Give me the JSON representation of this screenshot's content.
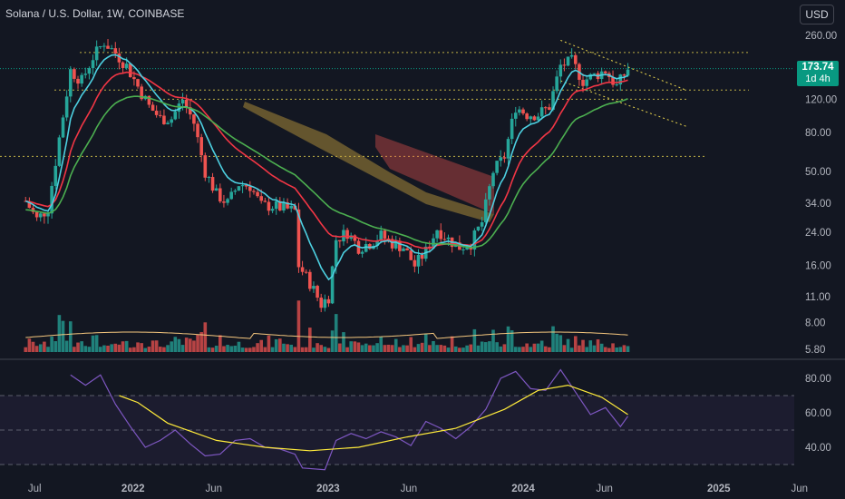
{
  "header": {
    "title": "Solana / U.S. Dollar, 1W, COINBASE",
    "currency_button": "USD"
  },
  "price_badge": {
    "price": "173.74",
    "countdown": "1d 4h",
    "color": "#089981"
  },
  "colors": {
    "background": "#131722",
    "up": "#26a69a",
    "down": "#ef5350",
    "rsi_line": "#7e57c2",
    "rsi_ma": "#ffeb3b",
    "ema_fast": "#4dd0e1",
    "ema_slow": "#f23645",
    "ema_long": "#4caf50"
  },
  "chart_data": [
    {
      "type": "candlestick",
      "title": "Solana / U.S. Dollar, 1W, COINBASE",
      "y_scale": "log",
      "ylim": [
        5.8,
        300
      ],
      "y_ticks": [
        "260.00",
        "120.00",
        "80.00",
        "50.00",
        "34.00",
        "24.00",
        "16.00",
        "11.00",
        "8.00",
        "5.80"
      ],
      "x_ticks": [
        "Jul",
        "2022",
        "Jun",
        "2023",
        "Jun",
        "2024",
        "Jun",
        "2025",
        "Jun"
      ],
      "x_range": [
        "2021-05",
        "2025-06"
      ],
      "current_price": 173.74,
      "price_path": [
        [
          "2021-06-14",
          35
        ],
        [
          "2021-07-05",
          28
        ],
        [
          "2021-07-26",
          32
        ],
        [
          "2021-08-16",
          75
        ],
        [
          "2021-09-06",
          170
        ],
        [
          "2021-09-27",
          150
        ],
        [
          "2021-10-18",
          200
        ],
        [
          "2021-11-08",
          240
        ],
        [
          "2021-11-29",
          210
        ],
        [
          "2021-12-20",
          180
        ],
        [
          "2022-01-10",
          140
        ],
        [
          "2022-01-31",
          110
        ],
        [
          "2022-02-21",
          95
        ],
        [
          "2022-03-14",
          95
        ],
        [
          "2022-04-04",
          120
        ],
        [
          "2022-04-25",
          90
        ],
        [
          "2022-05-16",
          50
        ],
        [
          "2022-06-06",
          38
        ],
        [
          "2022-06-27",
          34
        ],
        [
          "2022-07-18",
          43
        ],
        [
          "2022-08-08",
          42
        ],
        [
          "2022-08-29",
          33
        ],
        [
          "2022-09-19",
          33
        ],
        [
          "2022-10-10",
          32
        ],
        [
          "2022-10-31",
          31
        ],
        [
          "2022-11-07",
          16
        ],
        [
          "2022-11-28",
          13
        ],
        [
          "2022-12-19",
          10
        ],
        [
          "2023-01-02",
          11
        ],
        [
          "2023-01-16",
          22
        ],
        [
          "2023-02-06",
          24
        ],
        [
          "2023-02-27",
          20
        ],
        [
          "2023-03-20",
          21
        ],
        [
          "2023-04-10",
          23
        ],
        [
          "2023-05-01",
          21
        ],
        [
          "2023-05-22",
          20
        ],
        [
          "2023-06-12",
          16
        ],
        [
          "2023-07-03",
          19
        ],
        [
          "2023-07-24",
          25
        ],
        [
          "2023-08-14",
          22
        ],
        [
          "2023-09-04",
          20
        ],
        [
          "2023-09-25",
          21
        ],
        [
          "2023-10-16",
          27
        ],
        [
          "2023-11-06",
          50
        ],
        [
          "2023-11-27",
          60
        ],
        [
          "2023-12-18",
          110
        ],
        [
          "2024-01-08",
          100
        ],
        [
          "2024-01-29",
          100
        ],
        [
          "2024-02-19",
          110
        ],
        [
          "2024-03-11",
          180
        ],
        [
          "2024-04-01",
          190
        ],
        [
          "2024-04-22",
          150
        ],
        [
          "2024-05-13",
          160
        ],
        [
          "2024-06-03",
          170
        ],
        [
          "2024-06-24",
          140
        ],
        [
          "2024-07-15",
          173.74
        ]
      ],
      "annotations": [
        "ATH ~260",
        "descending wedge trendlines",
        "EMA ribbons"
      ]
    },
    {
      "type": "line",
      "title": "RSI",
      "y_ticks": [
        "80.00",
        "60.00",
        "40.00"
      ],
      "ylim": [
        25,
        90
      ],
      "bands": [
        70,
        50,
        30
      ],
      "series": [
        {
          "values": [
            [
              "2021-09-06",
              82
            ],
            [
              "2021-10-04",
              76
            ],
            [
              "2021-11-01",
              82
            ],
            [
              "2021-11-29",
              65
            ],
            [
              "2021-12-27",
              52
            ],
            [
              "2022-01-24",
              40
            ],
            [
              "2022-02-21",
              44
            ],
            [
              "2022-03-21",
              50
            ],
            [
              "2022-04-18",
              42
            ],
            [
              "2022-05-16",
              35
            ],
            [
              "2022-06-13",
              36
            ],
            [
              "2022-07-11",
              44
            ],
            [
              "2022-08-08",
              45
            ],
            [
              "2022-09-05",
              40
            ],
            [
              "2022-10-03",
              39
            ],
            [
              "2022-10-31",
              36
            ],
            [
              "2022-11-14",
              28
            ],
            [
              "2022-12-26",
              27
            ],
            [
              "2023-01-16",
              44
            ],
            [
              "2023-02-13",
              48
            ],
            [
              "2023-03-13",
              45
            ],
            [
              "2023-04-10",
              49
            ],
            [
              "2023-05-08",
              46
            ],
            [
              "2023-06-05",
              41
            ],
            [
              "2023-07-03",
              55
            ],
            [
              "2023-07-31",
              51
            ],
            [
              "2023-08-28",
              45
            ],
            [
              "2023-09-25",
              52
            ],
            [
              "2023-10-23",
              62
            ],
            [
              "2023-11-20",
              80
            ],
            [
              "2023-12-18",
              84
            ],
            [
              "2024-01-15",
              74
            ],
            [
              "2024-02-12",
              73
            ],
            [
              "2024-03-11",
              85
            ],
            [
              "2024-04-08",
              72
            ],
            [
              "2024-05-06",
              59
            ],
            [
              "2024-06-03",
              63
            ],
            [
              "2024-07-01",
              52
            ],
            [
              "2024-07-15",
              58
            ]
          ]
        },
        {
          "values": [
            [
              "2021-12-06",
              70
            ],
            [
              "2022-01-10",
              66
            ],
            [
              "2022-03-07",
              54
            ],
            [
              "2022-06-06",
              44
            ],
            [
              "2022-09-05",
              40
            ],
            [
              "2022-11-28",
              38
            ],
            [
              "2023-02-27",
              40
            ],
            [
              "2023-05-29",
              46
            ],
            [
              "2023-08-28",
              51
            ],
            [
              "2023-11-27",
              62
            ],
            [
              "2024-01-29",
              73
            ],
            [
              "2024-03-25",
              76
            ],
            [
              "2024-05-27",
              69
            ],
            [
              "2024-07-15",
              59
            ]
          ]
        }
      ]
    }
  ]
}
